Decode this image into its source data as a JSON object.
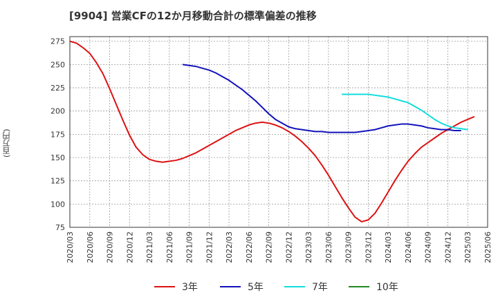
{
  "chart_data": {
    "type": "line",
    "title": "[9904]  営業CFの12か月移動合計の標準偏差の推移",
    "ylabel": "(百万円)",
    "xlabel": "",
    "ylim": [
      75,
      280
    ],
    "yticks": [
      75,
      100,
      125,
      150,
      175,
      200,
      225,
      250,
      275
    ],
    "xticks": [
      "2020/03",
      "2020/06",
      "2020/09",
      "2020/12",
      "2021/03",
      "2021/06",
      "2021/09",
      "2021/12",
      "2022/03",
      "2022/06",
      "2022/09",
      "2022/12",
      "2023/03",
      "2023/06",
      "2023/09",
      "2023/12",
      "2024/03",
      "2024/06",
      "2024/09",
      "2024/12",
      "2025/03",
      "2025/06"
    ],
    "grid": true,
    "legend_position": "bottom",
    "series": [
      {
        "name": "3年",
        "color": "#dd1111",
        "start": "2020/03",
        "values": [
          275,
          273,
          268,
          262,
          252,
          240,
          224,
          207,
          190,
          174,
          161,
          153,
          148,
          146,
          145,
          146,
          147,
          149,
          152,
          155,
          159,
          163,
          167,
          171,
          175,
          179,
          182,
          185,
          187,
          188,
          187,
          185,
          182,
          178,
          173,
          167,
          160,
          152,
          142,
          131,
          119,
          107,
          96,
          86,
          81,
          83,
          90,
          101,
          113,
          125,
          136,
          146,
          154,
          161,
          166,
          171,
          176,
          180,
          184,
          188,
          191,
          194
        ]
      },
      {
        "name": "5年",
        "color": "#1111bb",
        "start": "2021/08",
        "values": [
          250,
          249,
          248,
          246,
          244,
          241,
          237,
          233,
          228,
          223,
          217,
          211,
          204,
          197,
          191,
          187,
          183,
          181,
          180,
          179,
          178,
          178,
          177,
          177,
          177,
          177,
          177,
          178,
          179,
          180,
          182,
          184,
          185,
          186,
          186,
          185,
          184,
          182,
          181,
          180,
          180,
          179,
          179
        ]
      },
      {
        "name": "7年",
        "color": "#11dddd",
        "start": "2023/08",
        "values": [
          218,
          218,
          218,
          218,
          218,
          217,
          216,
          215,
          213,
          211,
          209,
          205,
          201,
          196,
          191,
          187,
          184,
          182,
          181,
          180
        ]
      },
      {
        "name": "10年",
        "color": "#228822",
        "start": "2024/01",
        "values": []
      }
    ]
  }
}
